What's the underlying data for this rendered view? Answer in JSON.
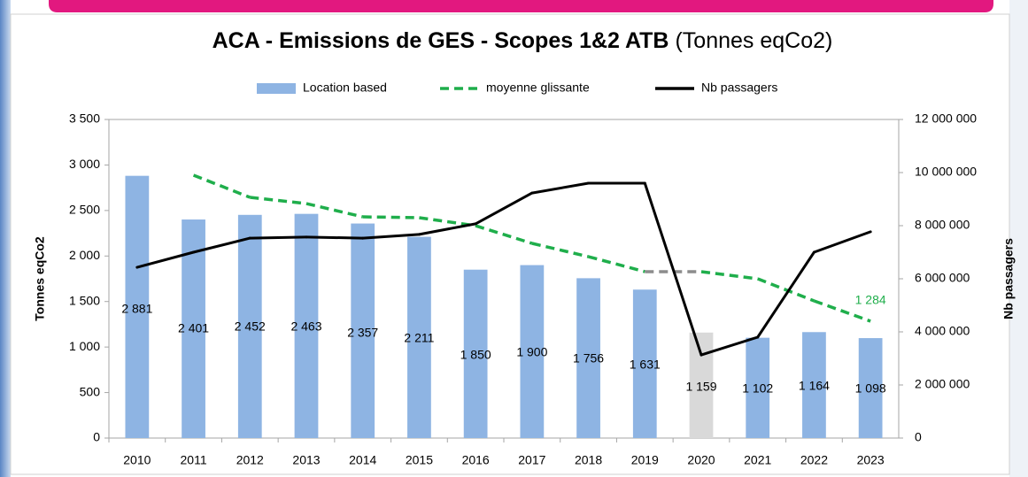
{
  "chart_data": {
    "type": "combo",
    "title": "ACA - Emissions de GES - Scopes 1&2 ATB",
    "title_unit": "(Tonnes eqCo2)",
    "y_label": "Tonnes eqCo2",
    "y2_label": "Nb passagers",
    "categories": [
      "2010",
      "2011",
      "2012",
      "2013",
      "2014",
      "2015",
      "2016",
      "2017",
      "2018",
      "2019",
      "2020",
      "2021",
      "2022",
      "2023"
    ],
    "ylim": [
      0,
      3500
    ],
    "yticks": [
      0,
      500,
      {
        "value": 1000,
        "label": "1 000"
      },
      {
        "value": 1500,
        "label": "1 500"
      },
      {
        "value": 2000,
        "label": "2 000"
      },
      {
        "value": 2500,
        "label": "2 500"
      },
      {
        "value": 3000,
        "label": "3 000"
      },
      {
        "value": 3500,
        "label": "3 500"
      }
    ],
    "y2lim": [
      0,
      12000000
    ],
    "y2ticks": [
      0,
      {
        "value": 2000000,
        "label": "2 000 000"
      },
      {
        "value": 4000000,
        "label": "4 000 000"
      },
      {
        "value": 6000000,
        "label": "6 000 000"
      },
      {
        "value": 8000000,
        "label": "8 000 000"
      },
      {
        "value": 10000000,
        "label": "10 000 000"
      },
      {
        "value": 12000000,
        "label": "12 000 000"
      }
    ],
    "legend": "top",
    "grid": false,
    "series": [
      {
        "name": "Location based",
        "type": "bar",
        "color": "#8eb4e3",
        "colors": [
          "#8eb4e3",
          "#8eb4e3",
          "#8eb4e3",
          "#8eb4e3",
          "#8eb4e3",
          "#8eb4e3",
          "#8eb4e3",
          "#8eb4e3",
          "#8eb4e3",
          "#8eb4e3",
          "#d9d9d9",
          "#8eb4e3",
          "#8eb4e3",
          "#8eb4e3"
        ],
        "values": [
          2881,
          2401,
          2452,
          2463,
          2357,
          2211,
          1850,
          1900,
          1756,
          1631,
          1159,
          1102,
          1164,
          1098
        ],
        "value_labels": [
          "2 881",
          "2 401",
          "2 452",
          "2 463",
          "2 357",
          "2 211",
          "1 850",
          "1 900",
          "1 756",
          "1 631",
          "1 159",
          "1 102",
          "1 164",
          "1 098"
        ]
      },
      {
        "name": "moyenne glissante",
        "type": "line",
        "dashed": true,
        "color": "#1fae4b",
        "segment_color": {
          "index": 10,
          "color": "#8c8c8c"
        },
        "values": [
          null,
          2888,
          2644,
          2576,
          2430,
          2421,
          2333,
          2139,
          1993,
          1828,
          1828,
          1750,
          1507,
          1284
        ],
        "value_labels": [
          null,
          null,
          null,
          null,
          null,
          null,
          null,
          null,
          null,
          null,
          null,
          null,
          null,
          "1 284"
        ]
      },
      {
        "name": "Nb passagers",
        "type": "line",
        "axis": "y2",
        "color": "#000000",
        "values": [
          6430000,
          7000000,
          7530000,
          7570000,
          7530000,
          7670000,
          8070000,
          9230000,
          9600000,
          9600000,
          3130000,
          3800000,
          7000000,
          7770000
        ]
      }
    ]
  }
}
